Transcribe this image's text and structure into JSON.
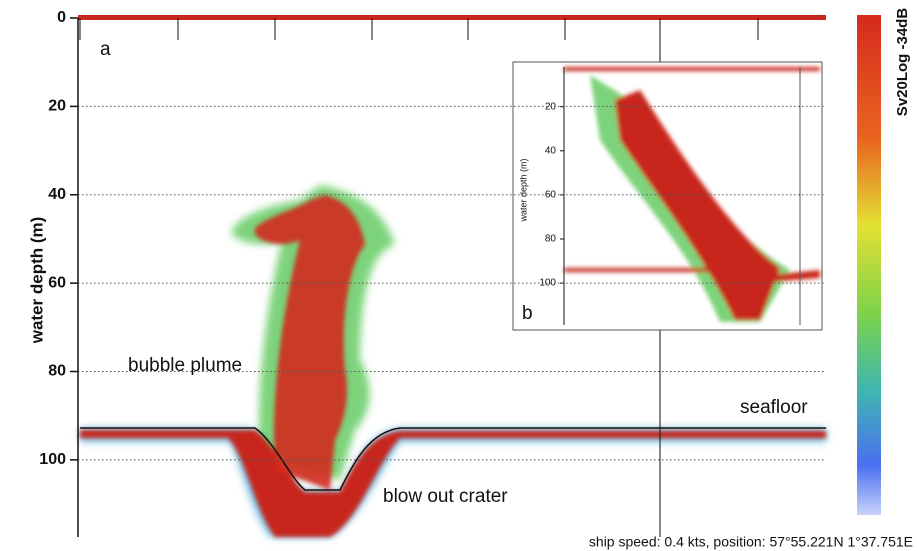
{
  "chart_data": {
    "type": "echogram",
    "ylabel": "water depth (m)",
    "ylim": [
      0,
      117
    ],
    "yticks": [
      0,
      20,
      40,
      60,
      80,
      100
    ],
    "grid": true,
    "panel_label": "a",
    "annotations": [
      "bubble plume",
      "seafloor",
      "blow out crater"
    ],
    "colorbar_label": "Sv20Log -34dB",
    "caption": "ship speed: 0.4 kts, position: 57°55.221N 1°37.751E",
    "inset": {
      "panel_label": "b",
      "ylabel": "water depth (m)",
      "ylim": [
        2,
        119
      ],
      "yticks": [
        20,
        40,
        60,
        80,
        100
      ]
    }
  }
}
